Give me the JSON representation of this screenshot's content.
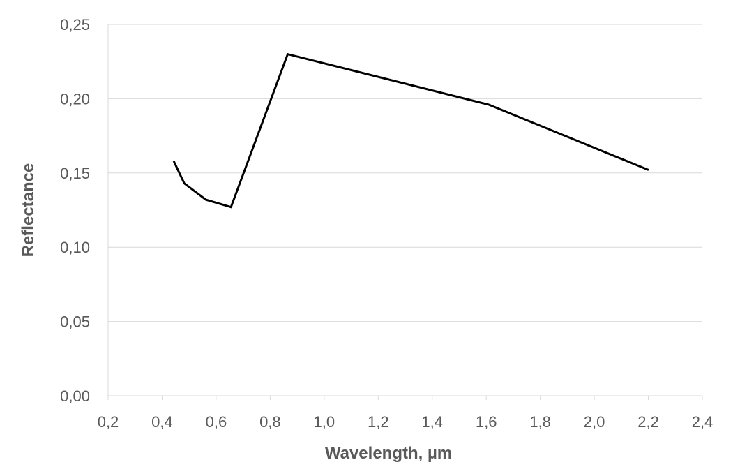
{
  "chart_data": {
    "type": "line",
    "title": "",
    "xlabel": "Wavelength, µm",
    "ylabel": "Reflectance",
    "xlim": [
      0.2,
      2.4
    ],
    "ylim": [
      0.0,
      0.25
    ],
    "x_ticks": [
      0.2,
      0.4,
      0.6,
      0.8,
      1.0,
      1.2,
      1.4,
      1.6,
      1.8,
      2.0,
      2.2,
      2.4
    ],
    "x_tick_labels": [
      "0,2",
      "0,4",
      "0,6",
      "0,8",
      "1,0",
      "1,2",
      "1,4",
      "1,6",
      "1,8",
      "2,0",
      "2,2",
      "2,4"
    ],
    "y_ticks": [
      0.0,
      0.05,
      0.1,
      0.15,
      0.2,
      0.25
    ],
    "y_tick_labels": [
      "0,00",
      "0,05",
      "0,10",
      "0,15",
      "0,20",
      "0,25"
    ],
    "grid": "horizontal",
    "legend": "none",
    "series": [
      {
        "color": "#000000",
        "x": [
          0.443,
          0.482,
          0.562,
          0.655,
          0.865,
          1.609,
          2.201
        ],
        "y": [
          0.158,
          0.143,
          0.132,
          0.127,
          0.23,
          0.196,
          0.152
        ]
      }
    ]
  },
  "colors": {
    "gridline": "#d9d9d9",
    "axis_text": "#595959",
    "line": "#000000"
  }
}
